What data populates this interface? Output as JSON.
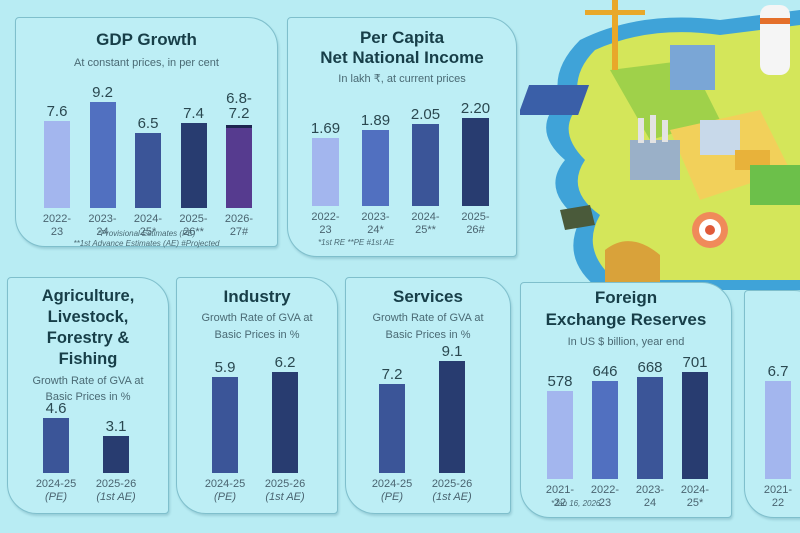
{
  "colors": {
    "shade1": "#a3b6ee",
    "shade2": "#5170c0",
    "shade3": "#3b5598",
    "shade4": "#283c70",
    "projected": "#563b8f"
  },
  "chart_data": [
    {
      "id": "gdp",
      "type": "bar",
      "title": "GDP Growth",
      "subtitle": "At constant prices, in per cent",
      "categories": [
        "2022-23",
        "2023-24",
        "2024-25*",
        "2025-26**",
        "2026-27#"
      ],
      "category_lines": [
        [
          "2022-",
          "23"
        ],
        [
          "2023-",
          "24"
        ],
        [
          "2024-",
          "25*"
        ],
        [
          "2025-",
          "26**"
        ],
        [
          "2026-",
          "27#"
        ]
      ],
      "values": [
        7.6,
        9.2,
        6.5,
        7.4,
        7.2
      ],
      "labels": [
        "7.6",
        "9.2",
        "6.5",
        "7.4",
        "6.8-\n7.2"
      ],
      "range_low": [
        null,
        null,
        null,
        null,
        6.8
      ],
      "colors": [
        "shade1",
        "shade2",
        "shade3",
        "shade4",
        "projected"
      ],
      "footnotes": [
        "*Provisional Estimates (PE)",
        "**1st Advance Estimates (AE) #Projected"
      ],
      "ylim": [
        0,
        10
      ]
    },
    {
      "id": "pcnni",
      "type": "bar",
      "title": "Per Capita\nNet National Income",
      "subtitle": "In lakh ₹, at current prices",
      "categories": [
        "2022-23",
        "2023-24*",
        "2024-25**",
        "2025-26#"
      ],
      "category_lines": [
        [
          "2022-",
          "23"
        ],
        [
          "2023-",
          "24*"
        ],
        [
          "2024-",
          "25**"
        ],
        [
          "2025-",
          "26#"
        ]
      ],
      "values": [
        1.69,
        1.89,
        2.05,
        2.2
      ],
      "labels": [
        "1.69",
        "1.89",
        "2.05",
        "2.20"
      ],
      "colors": [
        "shade1",
        "shade2",
        "shade3",
        "shade4"
      ],
      "footnotes": [
        "*1st RE  **PE  #1st AE"
      ],
      "ylim": [
        0,
        2.6
      ]
    },
    {
      "id": "agri",
      "type": "bar",
      "title": "Agriculture,\nLivestock,\nForestry &\nFishing",
      "subtitle": "Growth Rate of GVA at\nBasic Prices in %",
      "categories": [
        "2024-25 (PE)",
        "2025-26 (1st AE)"
      ],
      "category_lines": [
        [
          "2024-25",
          "(PE)"
        ],
        [
          "2025-26",
          "(1st AE)"
        ]
      ],
      "values": [
        4.6,
        3.1
      ],
      "labels": [
        "4.6",
        "3.1"
      ],
      "colors": [
        "shade3",
        "shade4"
      ],
      "ylim": [
        0,
        5
      ]
    },
    {
      "id": "industry",
      "type": "bar",
      "title": "Industry",
      "subtitle": "Growth Rate of GVA at\nBasic Prices in %",
      "categories": [
        "2024-25 (PE)",
        "2025-26 (1st AE)"
      ],
      "category_lines": [
        [
          "2024-25",
          "(PE)"
        ],
        [
          "2025-26",
          "(1st AE)"
        ]
      ],
      "values": [
        5.9,
        6.2
      ],
      "labels": [
        "5.9",
        "6.2"
      ],
      "colors": [
        "shade3",
        "shade4"
      ],
      "ylim": [
        0,
        8.7
      ]
    },
    {
      "id": "services",
      "type": "bar",
      "title": "Services",
      "subtitle": "Growth Rate of GVA at\nBasic Prices in %",
      "categories": [
        "2024-25 (PE)",
        "2025-26 (1st AE)"
      ],
      "category_lines": [
        [
          "2024-25",
          "(PE)"
        ],
        [
          "2025-26",
          "(1st AE)"
        ]
      ],
      "values": [
        7.2,
        9.1
      ],
      "labels": [
        "7.2",
        "9.1"
      ],
      "colors": [
        "shade3",
        "shade4"
      ],
      "ylim": [
        0,
        10.6
      ]
    },
    {
      "id": "forex",
      "type": "bar",
      "title": "Foreign\nExchange Reserves",
      "subtitle": "In US $ billion, year end",
      "categories": [
        "2021-22",
        "2022-23",
        "2023-24",
        "2024-25*"
      ],
      "category_lines": [
        [
          "2021-",
          "22"
        ],
        [
          "2022-",
          "23"
        ],
        [
          "2023-",
          "24"
        ],
        [
          "2024-",
          "25*"
        ]
      ],
      "values": [
        578,
        646,
        668,
        701
      ],
      "labels": [
        "578",
        "646",
        "668",
        "701"
      ],
      "colors": [
        "shade1",
        "shade2",
        "shade3",
        "shade4"
      ],
      "footnotes": [
        "*Jan 16, 2026"
      ],
      "ylim": [
        0,
        750
      ]
    },
    {
      "id": "partial",
      "type": "bar",
      "title": "",
      "subtitle": "",
      "categories": [
        "2021-22"
      ],
      "category_lines": [
        [
          "2021-",
          "22"
        ]
      ],
      "values": [
        6.7
      ],
      "labels": [
        "6.7"
      ],
      "colors": [
        "shade1"
      ],
      "ylim": [
        0,
        7.5
      ]
    }
  ]
}
